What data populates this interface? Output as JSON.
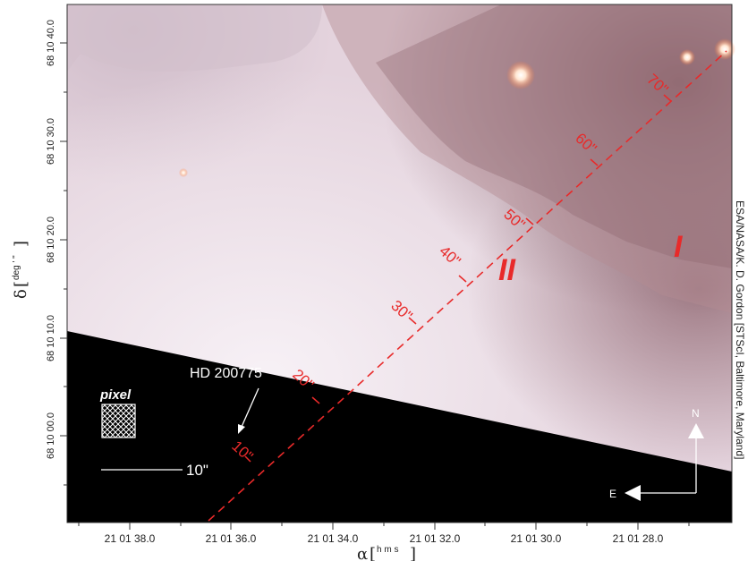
{
  "x_axis": {
    "symbol": "α",
    "unit": "h m s",
    "ticks": [
      "21 01 38.0",
      "21 01 36.0",
      "21 01 34.0",
      "21 01 32.0",
      "21 01 30.0",
      "21 01 28.0"
    ]
  },
  "y_axis": {
    "symbol": "δ",
    "unit": "deg ' \"",
    "ticks": [
      "68 10 00.0",
      "68 10 10.0",
      "68 10 20.0",
      "68 10 30.0",
      "68 10 40.0"
    ]
  },
  "cut_labels": [
    "10\"",
    "20\"",
    "30\"",
    "40\"",
    "50\"",
    "60\"",
    "70\""
  ],
  "regions": [
    "I",
    "II"
  ],
  "star_label": "HD 200775",
  "pixel_label": "pixel",
  "scale_bar_label": "10\"",
  "compass": {
    "north": "N",
    "east": "E"
  },
  "credit": "ESA/NASA/K. D. Gordon [STScI, Baltimore, Maryland]",
  "colors": {
    "cut": "#e82a2a",
    "mask": "#000000",
    "nebula": "#e6d3dc"
  }
}
